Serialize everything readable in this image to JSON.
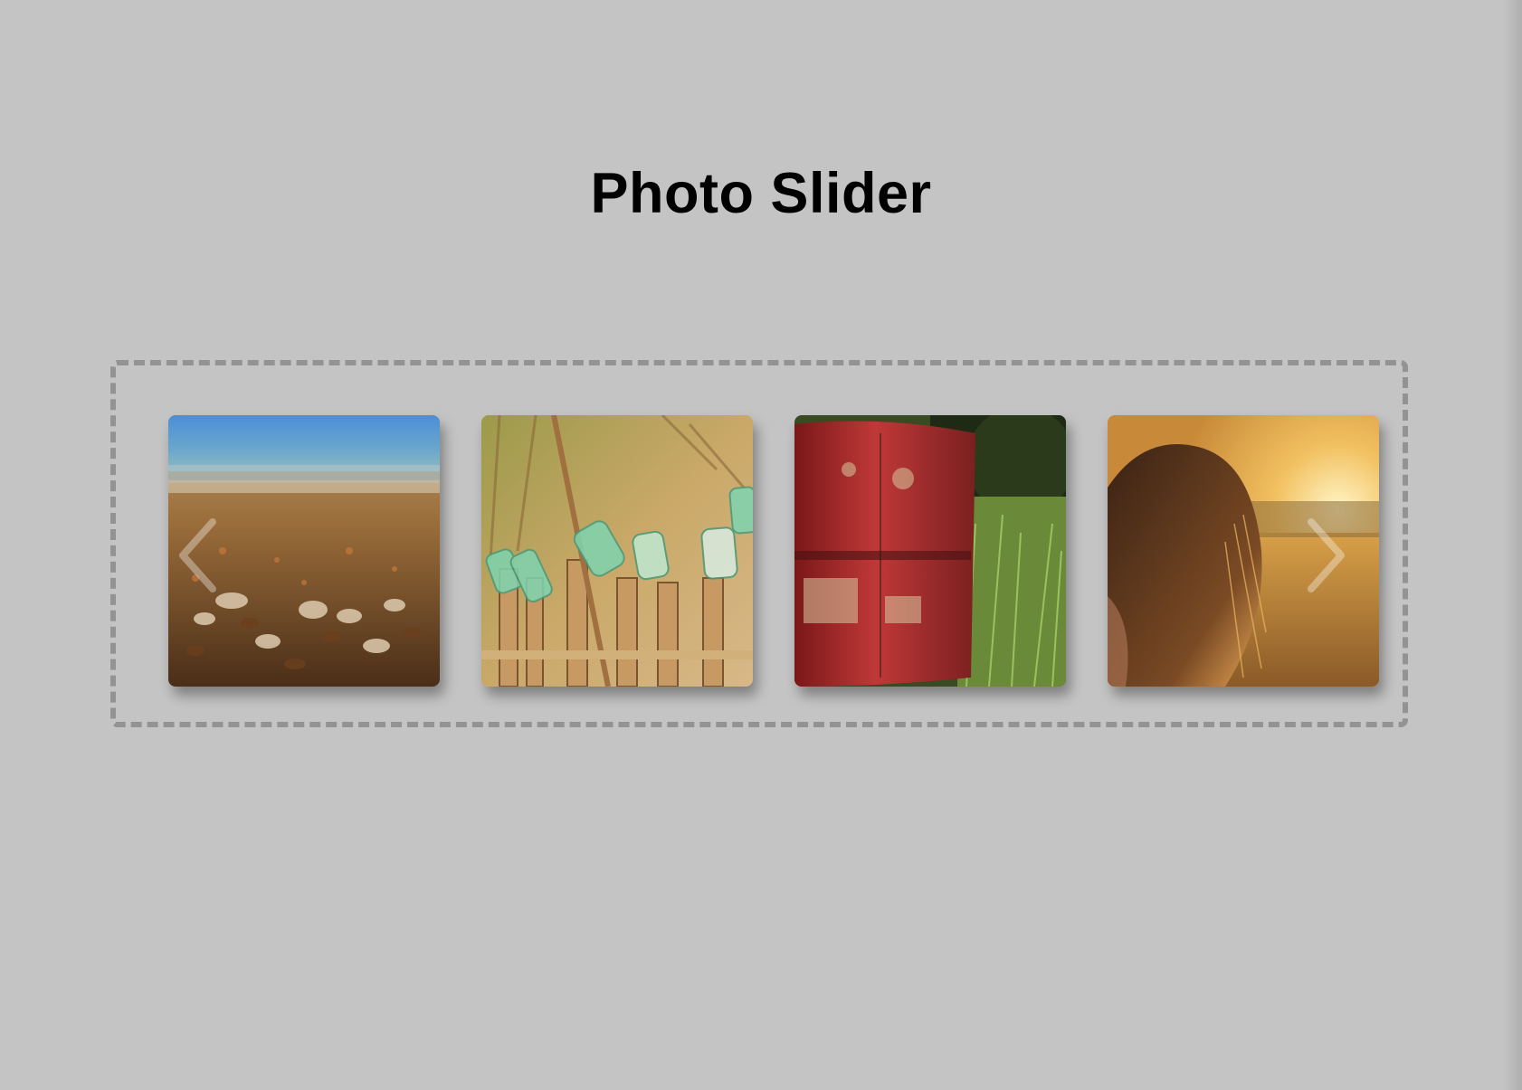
{
  "page": {
    "title": "Photo Slider"
  },
  "slider": {
    "photos": [
      {
        "subject": "pebble-beach-photo"
      },
      {
        "subject": "glass-bottles-fence-photo"
      },
      {
        "subject": "rusty-red-barrel-photo"
      },
      {
        "subject": "girl-in-sunset-field-photo"
      }
    ],
    "prev_icon": "chevron-left-icon",
    "next_icon": "chevron-right-icon"
  },
  "colors": {
    "background": "#c4c4c4",
    "border": "#939393",
    "title": "#000000"
  }
}
